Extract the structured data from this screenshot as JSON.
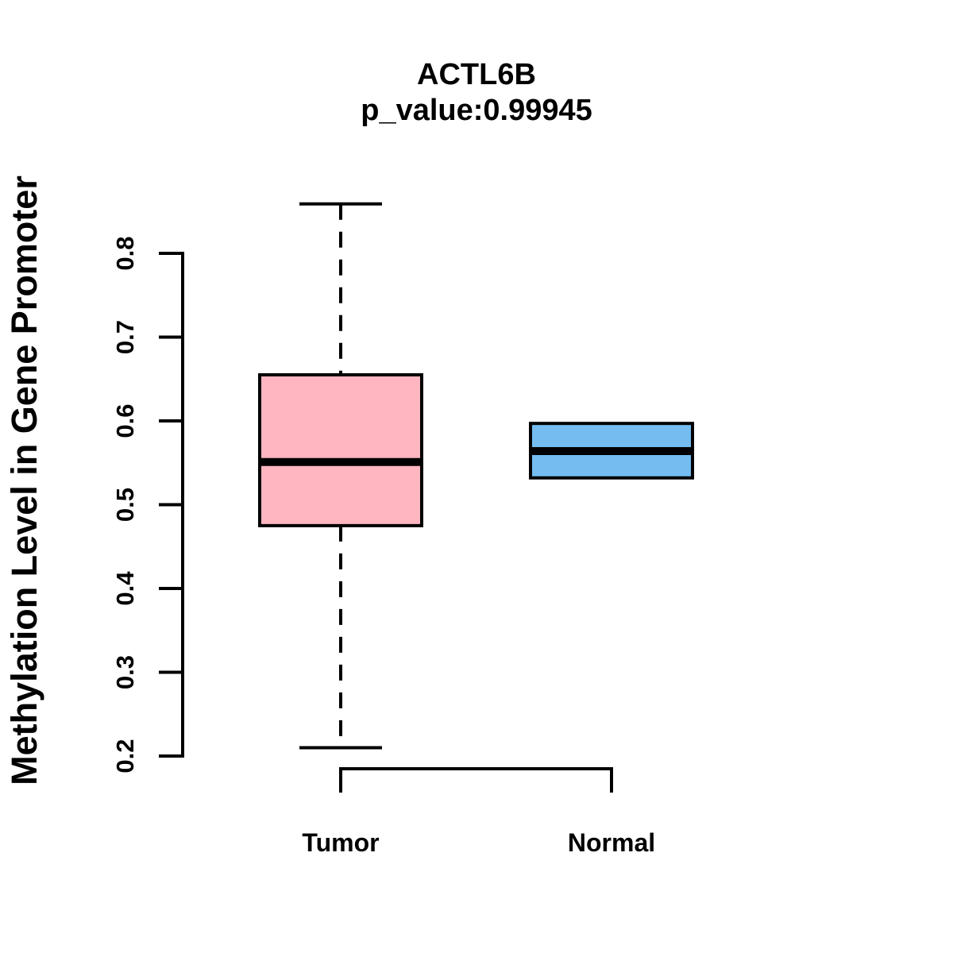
{
  "figure": {
    "background": "#FFFFFF",
    "stroke_color": "#000000"
  },
  "chart_data": {
    "type": "boxplot",
    "title": "ACTL6B",
    "subtitle": "p_value:0.99945",
    "ylabel": "Methylation Level in Gene Promoter",
    "xlabel": "",
    "categories": [
      "Tumor",
      "Normal"
    ],
    "yticks": [
      0.2,
      0.3,
      0.4,
      0.5,
      0.6,
      0.7,
      0.8
    ],
    "ylim": [
      0.18,
      0.88
    ],
    "grid": false,
    "legend_position": "none",
    "series": [
      {
        "name": "Tumor",
        "fill": "#FFB6C1",
        "whisker_low": 0.21,
        "q1": 0.475,
        "median": 0.551,
        "q3": 0.655,
        "whisker_high": 0.859
      },
      {
        "name": "Normal",
        "fill": "#75BDF0",
        "whisker_low": 0.532,
        "q1": 0.532,
        "median": 0.564,
        "q3": 0.597,
        "whisker_high": 0.597
      }
    ]
  }
}
